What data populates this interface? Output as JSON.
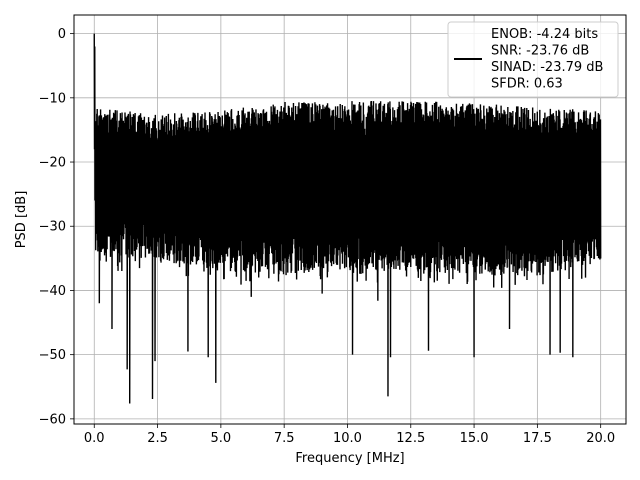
{
  "chart_data": {
    "type": "line",
    "title": "",
    "xlabel": "Frequency [MHz]",
    "ylabel": "PSD [dB]",
    "xlim": [
      -0.8,
      21.0
    ],
    "ylim": [
      -60.8,
      2.9
    ],
    "xticks": [
      0.0,
      2.5,
      5.0,
      7.5,
      10.0,
      12.5,
      15.0,
      17.5,
      20.0
    ],
    "xtick_labels": [
      "0.0",
      "2.5",
      "5.0",
      "7.5",
      "10.0",
      "12.5",
      "15.0",
      "17.5",
      "20.0"
    ],
    "yticks": [
      0,
      -10,
      -20,
      -30,
      -40,
      -50,
      -60
    ],
    "ytick_labels": [
      "0",
      "−10",
      "−20",
      "−30",
      "−40",
      "−50",
      "−60"
    ],
    "grid": true,
    "legend_position": "top-right",
    "series": [
      {
        "color": "#000000",
        "x_range": [
          0.0,
          20.0
        ],
        "peak": {
          "x": 0.0,
          "y": 0.0
        },
        "noise_upper_envelope": [
          [
            0.05,
            -11.5
          ],
          [
            2.5,
            -12.5
          ],
          [
            5.0,
            -12.0
          ],
          [
            7.5,
            -10.5
          ],
          [
            10.0,
            -10.5
          ],
          [
            12.5,
            -10.5
          ],
          [
            15.0,
            -10.8
          ],
          [
            17.5,
            -11.5
          ],
          [
            20.0,
            -12.0
          ]
        ],
        "noise_lower_envelope": [
          [
            0.05,
            -35.0
          ],
          [
            2.5,
            -35.0
          ],
          [
            5.0,
            -37.0
          ],
          [
            7.5,
            -37.5
          ],
          [
            10.0,
            -37.0
          ],
          [
            12.5,
            -37.0
          ],
          [
            15.0,
            -37.5
          ],
          [
            17.5,
            -38.0
          ],
          [
            20.0,
            -35.5
          ]
        ],
        "deep_minima": [
          [
            0.2,
            -42.0
          ],
          [
            0.7,
            -46.0
          ],
          [
            1.3,
            -52.3
          ],
          [
            1.4,
            -57.6
          ],
          [
            2.3,
            -56.9
          ],
          [
            2.4,
            -51.0
          ],
          [
            3.7,
            -49.5
          ],
          [
            4.5,
            -50.4
          ],
          [
            4.8,
            -54.4
          ],
          [
            6.2,
            -41.0
          ],
          [
            9.0,
            -40.5
          ],
          [
            10.2,
            -50.0
          ],
          [
            11.2,
            -41.6
          ],
          [
            11.6,
            -56.5
          ],
          [
            11.7,
            -50.4
          ],
          [
            13.2,
            -49.4
          ],
          [
            15.0,
            -50.4
          ],
          [
            16.4,
            -46.0
          ],
          [
            18.0,
            -50.0
          ],
          [
            18.4,
            -49.7
          ],
          [
            18.9,
            -50.4
          ]
        ]
      }
    ],
    "legend": {
      "entries": [
        "ENOB: -4.24 bits",
        "SNR: -23.76 dB",
        "SINAD: -23.79 dB",
        "SFDR: 0.63"
      ]
    }
  }
}
